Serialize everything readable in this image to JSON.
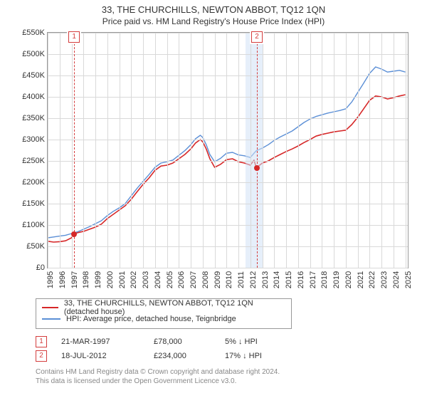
{
  "title": "33, THE CHURCHILLS, NEWTON ABBOT, TQ12 1QN",
  "subtitle": "Price paid vs. HM Land Registry's House Price Index (HPI)",
  "chart": {
    "type": "line",
    "background_color": "#ffffff",
    "grid_color": "#d9d9d9",
    "axis_color": "#999999",
    "label_fontsize": 11,
    "x_years": [
      1995,
      1996,
      1997,
      1998,
      1999,
      2000,
      2001,
      2002,
      2003,
      2004,
      2005,
      2006,
      2007,
      2008,
      2009,
      2010,
      2011,
      2012,
      2013,
      2014,
      2015,
      2016,
      2017,
      2018,
      2019,
      2020,
      2021,
      2022,
      2023,
      2024,
      2025
    ],
    "xlim": [
      1995,
      2025.2
    ],
    "y_ticks": [
      0,
      50000,
      100000,
      150000,
      200000,
      250000,
      300000,
      350000,
      400000,
      450000,
      500000,
      550000
    ],
    "y_tick_labels": [
      "£0",
      "£50K",
      "£100K",
      "£150K",
      "£200K",
      "£250K",
      "£300K",
      "£350K",
      "£400K",
      "£450K",
      "£500K",
      "£550K"
    ],
    "ylim": [
      0,
      550000
    ],
    "shade_color": "rgba(210,225,245,0.55)",
    "shade_x": [
      2011.6,
      2013.0
    ],
    "series": [
      {
        "id": "property",
        "color": "#d62728",
        "line_width": 1.6,
        "data": [
          [
            1995.0,
            62000
          ],
          [
            1995.5,
            60000
          ],
          [
            1996.0,
            61000
          ],
          [
            1996.5,
            63000
          ],
          [
            1997.0,
            70000
          ],
          [
            1997.2,
            78000
          ],
          [
            1997.5,
            82000
          ],
          [
            1998.0,
            85000
          ],
          [
            1998.5,
            90000
          ],
          [
            1999.0,
            95000
          ],
          [
            1999.5,
            102000
          ],
          [
            2000.0,
            115000
          ],
          [
            2000.5,
            125000
          ],
          [
            2001.0,
            135000
          ],
          [
            2001.5,
            145000
          ],
          [
            2002.0,
            160000
          ],
          [
            2002.5,
            178000
          ],
          [
            2003.0,
            195000
          ],
          [
            2003.5,
            210000
          ],
          [
            2004.0,
            228000
          ],
          [
            2004.5,
            238000
          ],
          [
            2005.0,
            240000
          ],
          [
            2005.5,
            245000
          ],
          [
            2006.0,
            255000
          ],
          [
            2006.5,
            265000
          ],
          [
            2007.0,
            278000
          ],
          [
            2007.4,
            292000
          ],
          [
            2007.8,
            300000
          ],
          [
            2008.0,
            295000
          ],
          [
            2008.3,
            278000
          ],
          [
            2008.6,
            255000
          ],
          [
            2009.0,
            235000
          ],
          [
            2009.5,
            242000
          ],
          [
            2010.0,
            253000
          ],
          [
            2010.5,
            255000
          ],
          [
            2011.0,
            248000
          ],
          [
            2011.5,
            245000
          ],
          [
            2012.0,
            240000
          ],
          [
            2012.3,
            252000
          ],
          [
            2012.5,
            234000
          ],
          [
            2013.0,
            245000
          ],
          [
            2013.5,
            250000
          ],
          [
            2014.0,
            258000
          ],
          [
            2014.5,
            265000
          ],
          [
            2015.0,
            272000
          ],
          [
            2015.5,
            278000
          ],
          [
            2016.0,
            285000
          ],
          [
            2016.5,
            293000
          ],
          [
            2017.0,
            300000
          ],
          [
            2017.5,
            308000
          ],
          [
            2018.0,
            312000
          ],
          [
            2018.5,
            315000
          ],
          [
            2019.0,
            318000
          ],
          [
            2019.5,
            320000
          ],
          [
            2020.0,
            322000
          ],
          [
            2020.5,
            335000
          ],
          [
            2021.0,
            352000
          ],
          [
            2021.5,
            372000
          ],
          [
            2022.0,
            392000
          ],
          [
            2022.5,
            402000
          ],
          [
            2023.0,
            400000
          ],
          [
            2023.5,
            395000
          ],
          [
            2024.0,
            398000
          ],
          [
            2024.5,
            402000
          ],
          [
            2025.0,
            405000
          ]
        ]
      },
      {
        "id": "hpi",
        "color": "#5b8fd6",
        "line_width": 1.4,
        "data": [
          [
            1995.0,
            70000
          ],
          [
            1995.5,
            72000
          ],
          [
            1996.0,
            74000
          ],
          [
            1996.5,
            76000
          ],
          [
            1997.0,
            80000
          ],
          [
            1997.5,
            84000
          ],
          [
            1998.0,
            90000
          ],
          [
            1998.5,
            96000
          ],
          [
            1999.0,
            103000
          ],
          [
            1999.5,
            110000
          ],
          [
            2000.0,
            122000
          ],
          [
            2000.5,
            132000
          ],
          [
            2001.0,
            140000
          ],
          [
            2001.5,
            150000
          ],
          [
            2002.0,
            168000
          ],
          [
            2002.5,
            186000
          ],
          [
            2003.0,
            202000
          ],
          [
            2003.5,
            218000
          ],
          [
            2004.0,
            235000
          ],
          [
            2004.5,
            245000
          ],
          [
            2005.0,
            248000
          ],
          [
            2005.5,
            252000
          ],
          [
            2006.0,
            263000
          ],
          [
            2006.5,
            274000
          ],
          [
            2007.0,
            288000
          ],
          [
            2007.4,
            302000
          ],
          [
            2007.8,
            310000
          ],
          [
            2008.0,
            305000
          ],
          [
            2008.3,
            288000
          ],
          [
            2008.6,
            265000
          ],
          [
            2009.0,
            248000
          ],
          [
            2009.5,
            256000
          ],
          [
            2010.0,
            268000
          ],
          [
            2010.5,
            270000
          ],
          [
            2011.0,
            264000
          ],
          [
            2011.5,
            262000
          ],
          [
            2012.0,
            258000
          ],
          [
            2012.3,
            268000
          ],
          [
            2012.5,
            274000
          ],
          [
            2013.0,
            280000
          ],
          [
            2013.5,
            288000
          ],
          [
            2014.0,
            298000
          ],
          [
            2014.5,
            306000
          ],
          [
            2015.0,
            313000
          ],
          [
            2015.5,
            320000
          ],
          [
            2016.0,
            330000
          ],
          [
            2016.5,
            340000
          ],
          [
            2017.0,
            348000
          ],
          [
            2017.5,
            354000
          ],
          [
            2018.0,
            358000
          ],
          [
            2018.5,
            362000
          ],
          [
            2019.0,
            365000
          ],
          [
            2019.5,
            368000
          ],
          [
            2020.0,
            372000
          ],
          [
            2020.5,
            388000
          ],
          [
            2021.0,
            410000
          ],
          [
            2021.5,
            432000
          ],
          [
            2022.0,
            455000
          ],
          [
            2022.5,
            470000
          ],
          [
            2023.0,
            465000
          ],
          [
            2023.5,
            458000
          ],
          [
            2024.0,
            460000
          ],
          [
            2024.5,
            462000
          ],
          [
            2025.0,
            458000
          ]
        ]
      }
    ],
    "markers": [
      {
        "n": "1",
        "x": 1997.22,
        "point_y": 78000
      },
      {
        "n": "2",
        "x": 2012.55,
        "point_y": 234000
      }
    ],
    "marker_color": "#d43d3d",
    "point_color": "#d62728"
  },
  "legend": {
    "items": [
      {
        "color": "#d62728",
        "label": "33, THE CHURCHILLS, NEWTON ABBOT, TQ12 1QN (detached house)"
      },
      {
        "color": "#5b8fd6",
        "label": "HPI: Average price, detached house, Teignbridge"
      }
    ]
  },
  "footnotes": [
    {
      "n": "1",
      "date": "21-MAR-1997",
      "price": "£78,000",
      "delta": "5% ↓ HPI"
    },
    {
      "n": "2",
      "date": "18-JUL-2012",
      "price": "£234,000",
      "delta": "17% ↓ HPI"
    }
  ],
  "license_line1": "Contains HM Land Registry data © Crown copyright and database right 2024.",
  "license_line2": "This data is licensed under the Open Government Licence v3.0."
}
